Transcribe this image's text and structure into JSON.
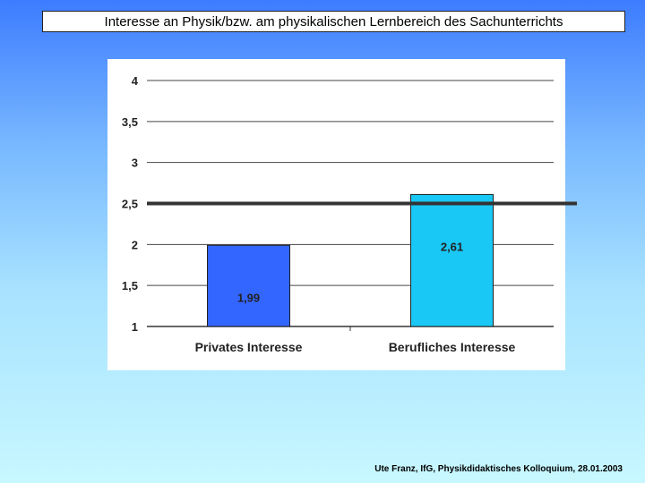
{
  "slide": {
    "title": "Interesse an Physik/bzw. am physikalischen Lernbereich des Sachunterrichts",
    "footer": "Ute Franz, IfG, Physikdidaktisches Kolloquium, 28.01.2003"
  },
  "chart_data": {
    "type": "bar",
    "title": "",
    "xlabel": "",
    "ylabel": "",
    "ylim": [
      1,
      4
    ],
    "yticks": [
      "1",
      "1,5",
      "2",
      "2,5",
      "3",
      "3,5",
      "4"
    ],
    "ytick_values": [
      1,
      1.5,
      2,
      2.5,
      3,
      3.5,
      4
    ],
    "grid": true,
    "categories": [
      "Privates Interesse",
      "Berufliches Interesse"
    ],
    "values": [
      1.99,
      2.61
    ],
    "data_labels": [
      "1,99",
      "2,61"
    ],
    "bar_colors": [
      "#3366ff",
      "#19c8f5"
    ],
    "reference_line": 2.5,
    "reference_line_color": "#333333"
  }
}
